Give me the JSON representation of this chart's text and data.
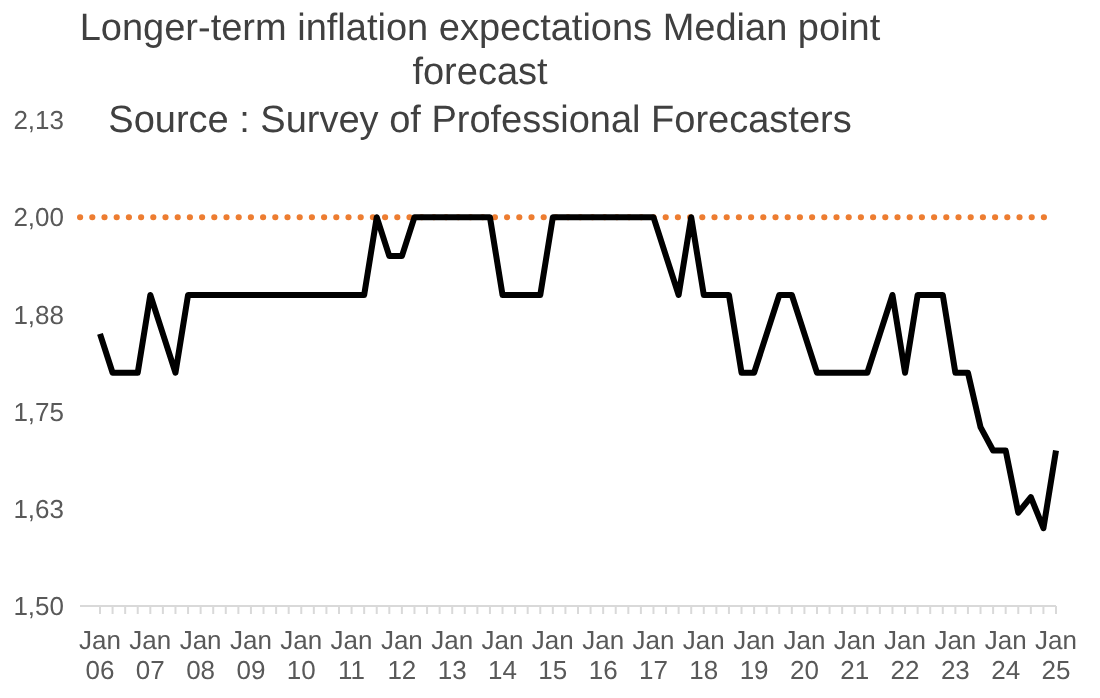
{
  "chart_data": {
    "type": "line",
    "title": "Longer-term inflation expectations Median point forecast",
    "annotations": [
      "Source : Survey of Professional Forecasters"
    ],
    "categories": [
      "Jan 06",
      null,
      null,
      null,
      "Jan 07",
      null,
      null,
      null,
      "Jan 08",
      null,
      null,
      null,
      "Jan 09",
      null,
      null,
      null,
      "Jan 10",
      null,
      null,
      null,
      "Jan 11",
      null,
      null,
      null,
      "Jan 12",
      null,
      null,
      null,
      "Jan 13",
      null,
      null,
      null,
      "Jan 14",
      null,
      null,
      null,
      "Jan 15",
      null,
      null,
      null,
      "Jan 16",
      null,
      null,
      null,
      "Jan 17",
      null,
      null,
      null,
      "Jan 18",
      null,
      null,
      null,
      "Jan 19",
      null,
      null,
      null,
      "Jan 20",
      null,
      null,
      null,
      "Jan 21",
      null,
      null,
      null,
      "Jan 22",
      null,
      null,
      null,
      "Jan 23",
      null,
      null,
      null,
      "Jan 24",
      null,
      null,
      null,
      "Jan 25"
    ],
    "series": [
      {
        "color": "#000000",
        "values": [
          1.85,
          1.8,
          1.8,
          1.8,
          1.9,
          1.85,
          1.8,
          1.9,
          1.9,
          1.9,
          1.9,
          1.9,
          1.9,
          1.9,
          1.9,
          1.9,
          1.9,
          1.9,
          1.9,
          1.9,
          1.9,
          1.9,
          2.0,
          1.95,
          1.95,
          2.0,
          2.0,
          2.0,
          2.0,
          2.0,
          2.0,
          2.0,
          1.9,
          1.9,
          1.9,
          1.9,
          2.0,
          2.0,
          2.0,
          2.0,
          2.0,
          2.0,
          2.0,
          2.0,
          2.0,
          1.95,
          1.9,
          2.0,
          1.9,
          1.9,
          1.9,
          1.8,
          1.8,
          1.85,
          1.9,
          1.9,
          1.85,
          1.8,
          1.8,
          1.8,
          1.8,
          1.8,
          1.85,
          1.9,
          1.8,
          1.9,
          1.9,
          1.9,
          1.8,
          1.8,
          1.73,
          1.7,
          1.7,
          1.62,
          1.64,
          1.6,
          1.7
        ]
      }
    ],
    "ylim": [
      1.5,
      2.125
    ],
    "yticks": [
      {
        "value": 1.5,
        "label": "1,50"
      },
      {
        "value": 1.625,
        "label": "1,63"
      },
      {
        "value": 1.75,
        "label": "1,75"
      },
      {
        "value": 1.875,
        "label": "1,88"
      },
      {
        "value": 2.0,
        "label": "2,00"
      },
      {
        "value": 2.125,
        "label": "2,13"
      }
    ],
    "ref_lines": [
      {
        "axis": "y",
        "value": 2.0,
        "color": "#ed7d31",
        "line_style": "dotted"
      }
    ],
    "marker": "none",
    "line_style": "solid"
  }
}
